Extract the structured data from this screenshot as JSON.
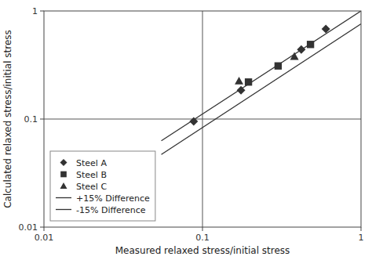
{
  "chart_data": {
    "type": "scatter",
    "xlabel": "Measured relaxed stress/initial stress",
    "ylabel": "Calculated relaxed stress/initial stress",
    "log": true,
    "xlim": [
      0.01,
      1.0
    ],
    "ylim": [
      0.01,
      1.0
    ],
    "xticks": [
      0.01,
      0.1,
      1
    ],
    "yticks": [
      0.01,
      0.1,
      1
    ],
    "grid": false,
    "legend": "lower left",
    "series": [
      {
        "name": "Steel A",
        "type": "scatter",
        "marker": "diamond",
        "color": "#333333",
        "x": [
          0.088,
          0.175,
          0.42,
          0.6
        ],
        "values": [
          0.095,
          0.185,
          0.44,
          0.68
        ]
      },
      {
        "name": "Steel B",
        "type": "scatter",
        "marker": "square",
        "color": "#333333",
        "x": [
          0.195,
          0.3,
          0.48
        ],
        "values": [
          0.22,
          0.31,
          0.49
        ]
      },
      {
        "name": "Steel C",
        "type": "scatter",
        "marker": "triangle",
        "color": "#333333",
        "x": [
          0.17,
          0.38
        ],
        "values": [
          0.225,
          0.38
        ]
      },
      {
        "name": "+15% Difference",
        "type": "line",
        "line_style": "solid",
        "color": "#333333",
        "x": [
          0.055,
          1.0
        ],
        "values": [
          0.063,
          1.0
        ]
      },
      {
        "name": "-15% Difference",
        "type": "line",
        "line_style": "solid",
        "color": "#333333",
        "x": [
          0.055,
          1.0
        ],
        "values": [
          0.047,
          0.76
        ]
      }
    ],
    "reference_lines": [
      {
        "axis": "y",
        "value": 0.1,
        "color": "#555555"
      },
      {
        "axis": "x",
        "value": 0.1,
        "color": "#555555"
      }
    ]
  }
}
